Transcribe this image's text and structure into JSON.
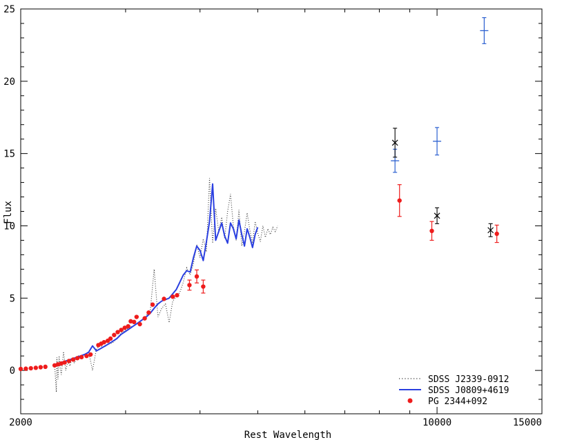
{
  "chart_data": {
    "type": "line",
    "xlabel": "Rest Wavelength",
    "ylabel": "Flux",
    "xscale": "log",
    "xlim": [
      2000,
      15000
    ],
    "ylim": [
      -3,
      25
    ],
    "grid": false,
    "legend_position": "bottom-right",
    "x_ticks": [
      2000,
      10000,
      15000
    ],
    "y_ticks": [
      0,
      5,
      10,
      15,
      20,
      25
    ],
    "series": [
      {
        "name": "SDSS J2339-0912",
        "style": "dotted",
        "color": "#333333",
        "x": [
          2280,
          2295,
          2300,
          2310,
          2320,
          2330,
          2340,
          2360,
          2380,
          2400,
          2420,
          2440,
          2460,
          2480,
          2500,
          2530,
          2560,
          2600,
          2640,
          2680,
          2720,
          2760,
          2800,
          2850,
          2900,
          2950,
          3000,
          3050,
          3100,
          3150,
          3200,
          3250,
          3300,
          3350,
          3400,
          3450,
          3500,
          3550,
          3600,
          3650,
          3700,
          3750,
          3800,
          3850,
          3900,
          3950,
          4000,
          4050,
          4100,
          4150,
          4200,
          4250,
          4300,
          4350,
          4400,
          4450,
          4500,
          4550,
          4600,
          4650,
          4700,
          4750,
          4800,
          4850,
          4900,
          4950,
          5000,
          5050,
          5100,
          5150,
          5200,
          5250,
          5300,
          5350,
          5400
        ],
        "y": [
          0.4,
          -1.5,
          0.9,
          -0.6,
          1.0,
          0.2,
          -0.3,
          1.3,
          0.0,
          0.6,
          0.3,
          0.9,
          0.5,
          0.8,
          1.0,
          0.8,
          1.1,
          1.3,
          0.0,
          1.5,
          1.7,
          1.6,
          1.8,
          1.9,
          2.2,
          2.6,
          2.8,
          3.0,
          3.1,
          3.3,
          3.5,
          3.8,
          4.1,
          7.0,
          3.7,
          4.3,
          4.6,
          3.3,
          4.8,
          5.1,
          5.4,
          6.1,
          7.1,
          6.6,
          7.4,
          8.7,
          7.8,
          9.1,
          8.2,
          13.3,
          8.8,
          11.2,
          9.6,
          10.6,
          9.1,
          11.0,
          12.2,
          10.0,
          9.0,
          11.1,
          8.6,
          9.6,
          10.9,
          9.7,
          8.8,
          10.3,
          9.5,
          8.9,
          10.0,
          9.2,
          9.8,
          9.4,
          9.9,
          9.6,
          10.0
        ]
      },
      {
        "name": "SDSS J0809+4619",
        "style": "solid",
        "color": "#2a3fe0",
        "x": [
          2280,
          2320,
          2360,
          2400,
          2440,
          2480,
          2520,
          2560,
          2600,
          2640,
          2680,
          2720,
          2760,
          2800,
          2850,
          2900,
          2950,
          3000,
          3050,
          3100,
          3150,
          3200,
          3250,
          3300,
          3350,
          3400,
          3450,
          3500,
          3550,
          3600,
          3650,
          3700,
          3750,
          3800,
          3850,
          3900,
          3950,
          4000,
          4050,
          4100,
          4150,
          4200,
          4250,
          4300,
          4350,
          4400,
          4450,
          4500,
          4550,
          4600,
          4650,
          4700,
          4750,
          4800,
          4850,
          4900,
          4950,
          5000
        ],
        "y": [
          0.4,
          0.5,
          0.6,
          0.7,
          0.8,
          0.9,
          1.0,
          1.1,
          1.25,
          1.7,
          1.35,
          1.5,
          1.65,
          1.8,
          2.0,
          2.2,
          2.5,
          2.7,
          2.9,
          3.1,
          3.3,
          3.5,
          3.7,
          3.95,
          4.3,
          4.6,
          4.8,
          4.9,
          5.0,
          5.3,
          5.6,
          6.1,
          6.6,
          6.9,
          6.8,
          7.8,
          8.6,
          8.3,
          7.6,
          8.9,
          10.3,
          12.9,
          9.0,
          9.6,
          10.2,
          9.3,
          8.8,
          10.2,
          9.8,
          9.1,
          10.4,
          9.4,
          8.6,
          9.8,
          9.2,
          8.5,
          9.4,
          9.9
        ]
      },
      {
        "name": "PG 2344+092",
        "style": "points",
        "color": "#ee1c1c",
        "x": [
          2000,
          2040,
          2080,
          2120,
          2160,
          2200,
          2280,
          2310,
          2340,
          2370,
          2410,
          2450,
          2490,
          2530,
          2580,
          2620,
          2700,
          2730,
          2760,
          2800,
          2830,
          2870,
          2910,
          2950,
          2990,
          3030,
          3060,
          3100,
          3130,
          3170,
          3230,
          3280,
          3330,
          3480,
          3600,
          3660,
          3840,
          3950,
          4050,
          8650,
          9800,
          12600
        ],
        "y": [
          0.1,
          0.12,
          0.15,
          0.18,
          0.22,
          0.25,
          0.35,
          0.42,
          0.48,
          0.55,
          0.65,
          0.75,
          0.85,
          0.92,
          1.0,
          1.1,
          1.75,
          1.85,
          1.95,
          2.05,
          2.2,
          2.45,
          2.65,
          2.8,
          2.95,
          3.05,
          3.4,
          3.35,
          3.7,
          3.2,
          3.6,
          4.0,
          4.55,
          4.95,
          5.1,
          5.2,
          5.9,
          6.5,
          5.8,
          11.75,
          9.65,
          9.45
        ],
        "error_points": [
          {
            "x": 3840,
            "y": 5.9,
            "err": 0.35
          },
          {
            "x": 3950,
            "y": 6.5,
            "err": 0.45
          },
          {
            "x": 4050,
            "y": 5.8,
            "err": 0.45
          },
          {
            "x": 8650,
            "y": 11.75,
            "err": 1.1
          },
          {
            "x": 9800,
            "y": 9.65,
            "err": 0.65
          },
          {
            "x": 12600,
            "y": 9.45,
            "err": 0.6
          }
        ]
      },
      {
        "style": "plus-errorbar",
        "color": "#2a5fd0",
        "x": [
          8500,
          10000,
          12000
        ],
        "y": [
          14.5,
          15.85,
          23.5
        ],
        "err": [
          0.8,
          0.95,
          0.9
        ]
      },
      {
        "style": "cross-errorbar",
        "color": "#000000",
        "x": [
          8500,
          10000,
          12300
        ],
        "y": [
          15.75,
          10.7,
          9.7
        ],
        "err": [
          1.0,
          0.55,
          0.45
        ]
      }
    ]
  }
}
